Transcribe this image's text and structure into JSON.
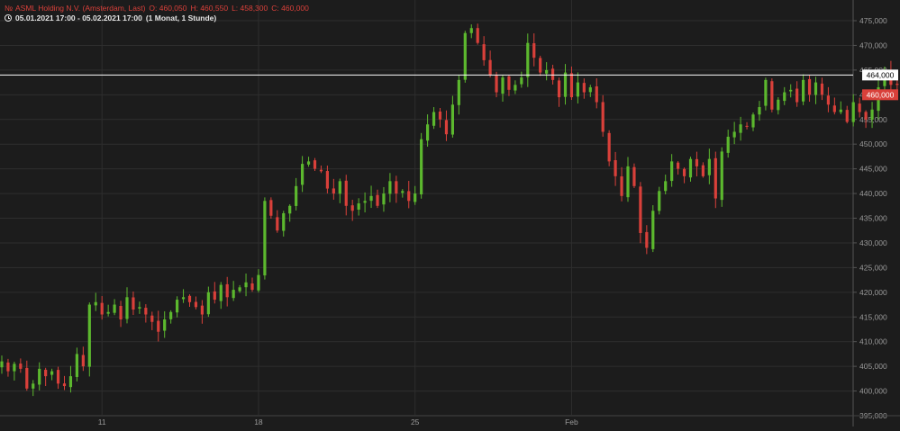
{
  "header": {
    "ticker_icon": "candlestick-logo-icon",
    "instrument": "ASML Holding N.V. (Amsterdam, Last)",
    "open": "O: 460,050",
    "high": "H: 460,550",
    "low": "L: 458,300",
    "close": "C: 460,000",
    "period_icon": "clock-icon",
    "range": "05.01.2021 17:00 - 05.02.2021 17:00",
    "interval": "(1 Monat, 1 Stunde)"
  },
  "colors": {
    "background": "#1c1c1c",
    "grid": "#2e2e2e",
    "up": "#5cb82e",
    "down": "#d9403a",
    "axis_text": "#9a9a9a",
    "crosshair": "#ffffff",
    "last_price_badge": "#d9403a"
  },
  "chart_data": {
    "type": "candlestick",
    "ylim": [
      393000,
      477000
    ],
    "y_ticks": [
      "395,000",
      "400,000",
      "405,000",
      "410,000",
      "415,000",
      "420,000",
      "425,000",
      "430,000",
      "435,000",
      "440,000",
      "445,000",
      "450,000",
      "455,000",
      "460,000",
      "465,000",
      "470,000",
      "475,000"
    ],
    "y_tick_values": [
      395000,
      400000,
      405000,
      410000,
      415000,
      420000,
      425000,
      430000,
      435000,
      440000,
      445000,
      450000,
      455000,
      460000,
      465000,
      470000,
      475000
    ],
    "x_ticks": [
      {
        "label": "11",
        "index": 16
      },
      {
        "label": "18",
        "index": 41
      },
      {
        "label": "25",
        "index": 66
      },
      {
        "label": "Feb",
        "index": 91
      }
    ],
    "grid": true,
    "crosshair_value": 464000,
    "crosshair_label": "464,000",
    "last_price": 460000,
    "last_price_label": "460,000",
    "closes": [
      406000,
      404000,
      405500,
      404500,
      400500,
      401500,
      404500,
      403000,
      404000,
      401500,
      401000,
      403000,
      407500,
      405000,
      417500,
      418000,
      415500,
      416000,
      417500,
      414500,
      419000,
      416500,
      417000,
      415500,
      414000,
      412000,
      414500,
      416000,
      418500,
      419000,
      418000,
      417000,
      415500,
      420000,
      418500,
      421500,
      419000,
      420500,
      421000,
      422000,
      420500,
      423500,
      438500,
      435500,
      432500,
      436000,
      437500,
      441500,
      446000,
      446500,
      445000,
      444500,
      441000,
      440000,
      442500,
      437500,
      436500,
      438000,
      438500,
      439500,
      437500,
      440000,
      442500,
      440000,
      440500,
      438500,
      440000,
      451000,
      454000,
      456500,
      455000,
      452000,
      458000,
      463000,
      472500,
      473500,
      470500,
      467000,
      464000,
      460500,
      463500,
      461000,
      462000,
      463500,
      470500,
      467500,
      464500,
      465000,
      463000,
      459500,
      464500,
      459500,
      462500,
      460500,
      461500,
      458500,
      452500,
      446500,
      443500,
      439500,
      445500,
      441500,
      432000,
      429000,
      436500,
      440500,
      442500,
      446500,
      445000,
      443500,
      447000,
      445500,
      443500,
      447000,
      439000,
      448500,
      451500,
      452500,
      454000,
      453500,
      456000,
      457500,
      463000,
      457000,
      459000,
      460500,
      461000,
      458500,
      463000,
      460000,
      462500,
      460000,
      458000,
      456500,
      457000,
      454500,
      458500,
      456500,
      455000,
      457000,
      461500,
      465000,
      462000,
      462000,
      460000
    ]
  }
}
